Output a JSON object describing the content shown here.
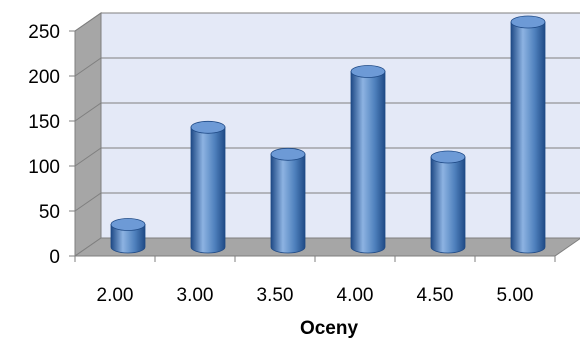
{
  "chart_data": {
    "type": "bar",
    "style": "3d-cylinder",
    "title": "",
    "xlabel": "Oceny",
    "ylabel": "",
    "categories": [
      "2.00",
      "3.00",
      "3.50",
      "4.00",
      "4.50",
      "5.00"
    ],
    "values": [
      25,
      133,
      103,
      195,
      100,
      250
    ],
    "ylim": [
      0,
      250
    ],
    "yticks": [
      "0",
      "50",
      "100",
      "150",
      "200",
      "250"
    ],
    "grid": true,
    "legend": "none"
  },
  "colors": {
    "back_wall": "#e4e9f7",
    "side_wall": "#a6a6a6",
    "floor": "#a6a6a6",
    "gridline": "#7f7f7f",
    "bar_dark": "#1f4a86",
    "bar_mid": "#4f81bd",
    "bar_light": "#8db3e2",
    "bar_top": "#6d9ad6",
    "text": "#000000"
  }
}
